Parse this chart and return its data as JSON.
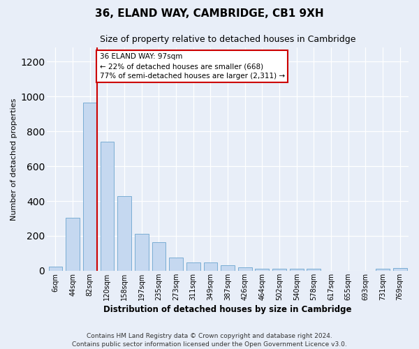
{
  "title": "36, ELAND WAY, CAMBRIDGE, CB1 9XH",
  "subtitle": "Size of property relative to detached houses in Cambridge",
  "xlabel": "Distribution of detached houses by size in Cambridge",
  "ylabel": "Number of detached properties",
  "footer_line1": "Contains HM Land Registry data © Crown copyright and database right 2024.",
  "footer_line2": "Contains public sector information licensed under the Open Government Licence v3.0.",
  "bar_labels": [
    "6sqm",
    "44sqm",
    "82sqm",
    "120sqm",
    "158sqm",
    "197sqm",
    "235sqm",
    "273sqm",
    "311sqm",
    "349sqm",
    "387sqm",
    "426sqm",
    "464sqm",
    "502sqm",
    "540sqm",
    "578sqm",
    "617sqm",
    "655sqm",
    "693sqm",
    "731sqm",
    "769sqm"
  ],
  "bar_values": [
    25,
    305,
    965,
    740,
    430,
    210,
    165,
    75,
    48,
    48,
    30,
    18,
    10,
    10,
    10,
    10,
    0,
    0,
    0,
    10,
    15
  ],
  "bar_color": "#c5d8f0",
  "bar_edge_color": "#7aadd4",
  "ylim_max": 1280,
  "yticks": [
    0,
    200,
    400,
    600,
    800,
    1000,
    1200
  ],
  "red_line_color": "#cc0000",
  "annotation_line1": "36 ELAND WAY: 97sqm",
  "annotation_line2": "← 22% of detached houses are smaller (668)",
  "annotation_line3": "77% of semi-detached houses are larger (2,311) →",
  "bg_color": "#e8eef8",
  "grid_color": "#ffffff",
  "fig_width": 6.0,
  "fig_height": 5.0,
  "red_line_x": 2.41
}
